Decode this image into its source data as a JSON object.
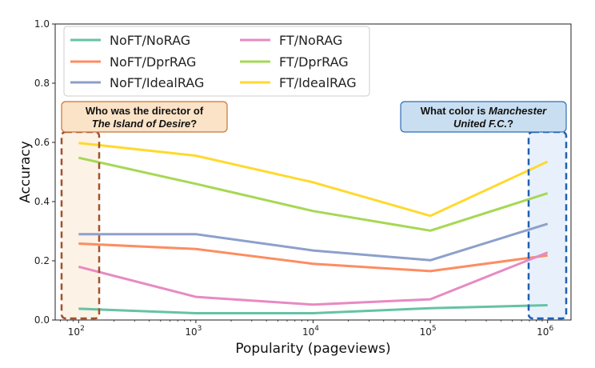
{
  "chart_data": {
    "type": "line",
    "xlabel": "Popularity (pageviews)",
    "ylabel": "Accuracy",
    "xscale": "log",
    "x": [
      100,
      1000,
      10000,
      100000,
      1000000
    ],
    "x_tick_labels": [
      {
        "base": "10",
        "exp": "2"
      },
      {
        "base": "10",
        "exp": "3"
      },
      {
        "base": "10",
        "exp": "4"
      },
      {
        "base": "10",
        "exp": "5"
      },
      {
        "base": "10",
        "exp": "6"
      }
    ],
    "ylim": [
      0.0,
      1.0
    ],
    "y_ticks": [
      "0.0",
      "0.2",
      "0.4",
      "0.6",
      "0.8",
      "1.0"
    ],
    "grid": false,
    "legend_position": "top-left",
    "series": [
      {
        "name": "NoFT/NoRAG",
        "color": "#66c2a5",
        "values": [
          0.038,
          0.023,
          0.023,
          0.04,
          0.05
        ]
      },
      {
        "name": "NoFT/DprRAG",
        "color": "#fc8d62",
        "values": [
          0.258,
          0.24,
          0.19,
          0.165,
          0.218
        ]
      },
      {
        "name": "NoFT/IdealRAG",
        "color": "#8da0cb",
        "values": [
          0.29,
          0.29,
          0.235,
          0.202,
          0.325
        ]
      },
      {
        "name": "FT/NoRAG",
        "color": "#e78ac3",
        "values": [
          0.18,
          0.078,
          0.052,
          0.07,
          0.228
        ]
      },
      {
        "name": "FT/DprRAG",
        "color": "#a6d854",
        "values": [
          0.548,
          0.46,
          0.368,
          0.302,
          0.428
        ]
      },
      {
        "name": "FT/IdealRAG",
        "color": "#ffd92f",
        "values": [
          0.598,
          0.555,
          0.465,
          0.352,
          0.535
        ]
      }
    ],
    "annotations": [
      {
        "side": "left",
        "lines": [
          [
            {
              "text": "Who was the director of",
              "italic": false
            }
          ],
          [
            {
              "text": "The Island of Desire",
              "italic": true
            },
            {
              "text": "?",
              "italic": false
            }
          ]
        ],
        "box_fill": "#fbe3c7",
        "box_stroke": "#c8733a",
        "region_fill": "#fdf0e2",
        "region_stroke": "#a0522d"
      },
      {
        "side": "right",
        "lines": [
          [
            {
              "text": "What color is ",
              "italic": false
            },
            {
              "text": "Manchester",
              "italic": true
            }
          ],
          [
            {
              "text": "United F.C.",
              "italic": true
            },
            {
              "text": "?",
              "italic": false
            }
          ]
        ],
        "box_fill": "#c9def0",
        "box_stroke": "#2f6db3",
        "region_fill": "#e4eefa",
        "region_stroke": "#1f5fb0"
      }
    ]
  }
}
